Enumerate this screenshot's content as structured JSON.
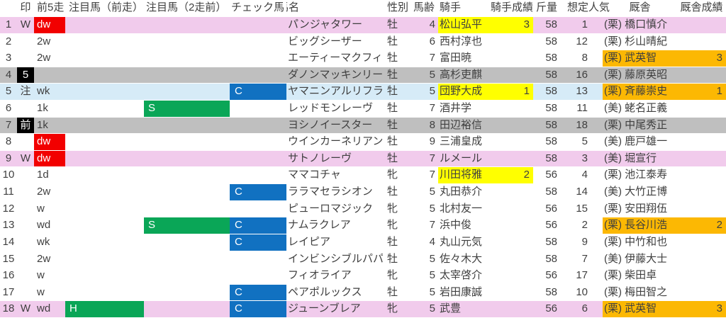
{
  "colors": {
    "row_pink": "#F1CBEC",
    "row_gray": "#BFBFBF",
    "row_blue": "#D6EBF7",
    "cell_red": "#F20000",
    "cell_black": "#000000",
    "cell_green": "#0AA657",
    "cell_blue": "#1171C1",
    "cell_yellow": "#FFFF00",
    "cell_orange": "#FCB803",
    "text": "#3F3F3F"
  },
  "header": {
    "mark": "印",
    "last5": "前5走",
    "attn_prev": "注目馬（前走）",
    "attn_prev2": "注目馬（2走前）",
    "check": "チェック馬",
    "name": "馬名",
    "sex": "性別",
    "age": "馬齢",
    "jockey": "騎手",
    "jockey_result": "騎手成績",
    "weight": "斤量",
    "pop": "想定人気",
    "stable": "厩舎",
    "stable_result": "厩舎成績"
  },
  "rows": [
    {
      "num": "1",
      "mark": "W",
      "mark_black": false,
      "last5": "dw",
      "last5_red": true,
      "attn_prev": "",
      "attn_prev2": "",
      "check": "",
      "name": "パンジャタワー",
      "sex": "牡",
      "age": "4",
      "jockey": "松山弘平",
      "jockey_result": "3",
      "jockey_hl": true,
      "weight": "58",
      "pop": "1",
      "stable": "(栗) 橋口慎介",
      "stable_result": "",
      "stable_hl": false,
      "row_color": "pink"
    },
    {
      "num": "2",
      "mark": "",
      "mark_black": false,
      "last5": "2w",
      "last5_red": false,
      "attn_prev": "",
      "attn_prev2": "",
      "check": "",
      "name": "ビッグシーザー",
      "sex": "牡",
      "age": "6",
      "jockey": "西村淳也",
      "jockey_result": "",
      "jockey_hl": false,
      "weight": "58",
      "pop": "12",
      "stable": "(栗) 杉山晴紀",
      "stable_result": "",
      "stable_hl": false,
      "row_color": "white"
    },
    {
      "num": "3",
      "mark": "",
      "mark_black": false,
      "last5": "2w",
      "last5_red": false,
      "attn_prev": "",
      "attn_prev2": "",
      "check": "",
      "name": "エーティーマクフィ",
      "sex": "牡",
      "age": "7",
      "jockey": "富田暁",
      "jockey_result": "",
      "jockey_hl": false,
      "weight": "58",
      "pop": "8",
      "stable": "(栗) 武英智",
      "stable_result": "3",
      "stable_hl": true,
      "row_color": "white"
    },
    {
      "num": "4",
      "mark": "5",
      "mark_black": true,
      "last5": "",
      "last5_red": false,
      "attn_prev": "",
      "attn_prev2": "",
      "check": "",
      "name": "ダノンマッキンリー",
      "sex": "牡",
      "age": "5",
      "jockey": "高杉吏麒",
      "jockey_result": "",
      "jockey_hl": false,
      "weight": "58",
      "pop": "16",
      "stable": "(栗) 藤原英昭",
      "stable_result": "",
      "stable_hl": false,
      "row_color": "gray"
    },
    {
      "num": "5",
      "mark": "注",
      "mark_black": false,
      "last5": "wk",
      "last5_red": false,
      "attn_prev": "",
      "attn_prev2": "",
      "check": "C",
      "name": "ヤマニンアルリフラ",
      "sex": "牡",
      "age": "5",
      "jockey": "団野大成",
      "jockey_result": "1",
      "jockey_hl": true,
      "weight": "58",
      "pop": "13",
      "stable": "(栗) 斉藤崇史",
      "stable_result": "1",
      "stable_hl": true,
      "row_color": "blue"
    },
    {
      "num": "6",
      "mark": "",
      "mark_black": false,
      "last5": "1k",
      "last5_red": false,
      "attn_prev": "",
      "attn_prev2": "S",
      "check": "",
      "name": "レッドモンレーヴ",
      "sex": "牡",
      "age": "7",
      "jockey": "酒井学",
      "jockey_result": "",
      "jockey_hl": false,
      "weight": "58",
      "pop": "11",
      "stable": "(美) 蛯名正義",
      "stable_result": "",
      "stable_hl": false,
      "row_color": "white"
    },
    {
      "num": "7",
      "mark": "前",
      "mark_black": true,
      "last5": "1k",
      "last5_red": false,
      "attn_prev": "",
      "attn_prev2": "",
      "check": "",
      "name": "ヨシノイースター",
      "sex": "牡",
      "age": "8",
      "jockey": "田辺裕信",
      "jockey_result": "",
      "jockey_hl": false,
      "weight": "58",
      "pop": "18",
      "stable": "(栗) 中尾秀正",
      "stable_result": "",
      "stable_hl": false,
      "row_color": "gray"
    },
    {
      "num": "8",
      "mark": "",
      "mark_black": false,
      "last5": "dw",
      "last5_red": true,
      "attn_prev": "",
      "attn_prev2": "",
      "check": "",
      "name": "ウインカーネリアン",
      "sex": "牡",
      "age": "9",
      "jockey": "三浦皇成",
      "jockey_result": "",
      "jockey_hl": false,
      "weight": "58",
      "pop": "5",
      "stable": "(美) 鹿戸雄一",
      "stable_result": "",
      "stable_hl": false,
      "row_color": "white"
    },
    {
      "num": "9",
      "mark": "W",
      "mark_black": false,
      "last5": "dw",
      "last5_red": true,
      "attn_prev": "",
      "attn_prev2": "",
      "check": "",
      "name": "サトノレーヴ",
      "sex": "牡",
      "age": "7",
      "jockey": "ルメール",
      "jockey_result": "",
      "jockey_hl": false,
      "weight": "58",
      "pop": "3",
      "stable": "(美) 堀宣行",
      "stable_result": "",
      "stable_hl": false,
      "row_color": "pink"
    },
    {
      "num": "10",
      "mark": "",
      "mark_black": false,
      "last5": "1d",
      "last5_red": false,
      "attn_prev": "",
      "attn_prev2": "",
      "check": "",
      "name": "ママコチャ",
      "sex": "牝",
      "age": "7",
      "jockey": "川田将雅",
      "jockey_result": "2",
      "jockey_hl": true,
      "weight": "56",
      "pop": "4",
      "stable": "(栗) 池江泰寿",
      "stable_result": "",
      "stable_hl": false,
      "row_color": "white"
    },
    {
      "num": "11",
      "mark": "",
      "mark_black": false,
      "last5": "2w",
      "last5_red": false,
      "attn_prev": "",
      "attn_prev2": "",
      "check": "C",
      "name": "ララマセラシオン",
      "sex": "牡",
      "age": "5",
      "jockey": "丸田恭介",
      "jockey_result": "",
      "jockey_hl": false,
      "weight": "58",
      "pop": "14",
      "stable": "(美) 大竹正博",
      "stable_result": "",
      "stable_hl": false,
      "row_color": "white"
    },
    {
      "num": "12",
      "mark": "",
      "mark_black": false,
      "last5": "w",
      "last5_red": false,
      "attn_prev": "",
      "attn_prev2": "",
      "check": "",
      "name": "ピューロマジック",
      "sex": "牝",
      "age": "5",
      "jockey": "北村友一",
      "jockey_result": "",
      "jockey_hl": false,
      "weight": "56",
      "pop": "15",
      "stable": "(栗) 安田翔伍",
      "stable_result": "",
      "stable_hl": false,
      "row_color": "white"
    },
    {
      "num": "13",
      "mark": "",
      "mark_black": false,
      "last5": "wd",
      "last5_red": false,
      "attn_prev": "",
      "attn_prev2": "S",
      "check": "C",
      "name": "ナムラクレア",
      "sex": "牝",
      "age": "7",
      "jockey": "浜中俊",
      "jockey_result": "",
      "jockey_hl": false,
      "weight": "56",
      "pop": "2",
      "stable": "(栗) 長谷川浩",
      "stable_result": "2",
      "stable_hl": true,
      "row_color": "white"
    },
    {
      "num": "14",
      "mark": "",
      "mark_black": false,
      "last5": "wk",
      "last5_red": false,
      "attn_prev": "",
      "attn_prev2": "",
      "check": "C",
      "name": "レイピア",
      "sex": "牡",
      "age": "4",
      "jockey": "丸山元気",
      "jockey_result": "",
      "jockey_hl": false,
      "weight": "58",
      "pop": "9",
      "stable": "(栗) 中竹和也",
      "stable_result": "",
      "stable_hl": false,
      "row_color": "white"
    },
    {
      "num": "15",
      "mark": "",
      "mark_black": false,
      "last5": "2w",
      "last5_red": false,
      "attn_prev": "",
      "attn_prev2": "",
      "check": "",
      "name": "インビンシブルパパ",
      "sex": "牡",
      "age": "5",
      "jockey": "佐々木大",
      "jockey_result": "",
      "jockey_hl": false,
      "weight": "58",
      "pop": "7",
      "stable": "(美) 伊藤大士",
      "stable_result": "",
      "stable_hl": false,
      "row_color": "white"
    },
    {
      "num": "16",
      "mark": "",
      "mark_black": false,
      "last5": "w",
      "last5_red": false,
      "attn_prev": "",
      "attn_prev2": "",
      "check": "",
      "name": "フィオライア",
      "sex": "牝",
      "age": "5",
      "jockey": "太宰啓介",
      "jockey_result": "",
      "jockey_hl": false,
      "weight": "56",
      "pop": "17",
      "stable": "(栗) 柴田卓",
      "stable_result": "",
      "stable_hl": false,
      "row_color": "white"
    },
    {
      "num": "17",
      "mark": "",
      "mark_black": false,
      "last5": "w",
      "last5_red": false,
      "attn_prev": "",
      "attn_prev2": "",
      "check": "C",
      "name": "ペアポルックス",
      "sex": "牡",
      "age": "5",
      "jockey": "岩田康誠",
      "jockey_result": "",
      "jockey_hl": false,
      "weight": "58",
      "pop": "10",
      "stable": "(栗) 梅田智之",
      "stable_result": "",
      "stable_hl": false,
      "row_color": "white"
    },
    {
      "num": "18",
      "mark": "W",
      "mark_black": false,
      "last5": "wd",
      "last5_red": false,
      "attn_prev": "H",
      "attn_prev2": "",
      "check": "C",
      "name": "ジューンブレア",
      "sex": "牝",
      "age": "5",
      "jockey": "武豊",
      "jockey_result": "",
      "jockey_hl": false,
      "weight": "56",
      "pop": "6",
      "stable": "(栗) 武英智",
      "stable_result": "3",
      "stable_hl": true,
      "row_color": "pink"
    }
  ]
}
